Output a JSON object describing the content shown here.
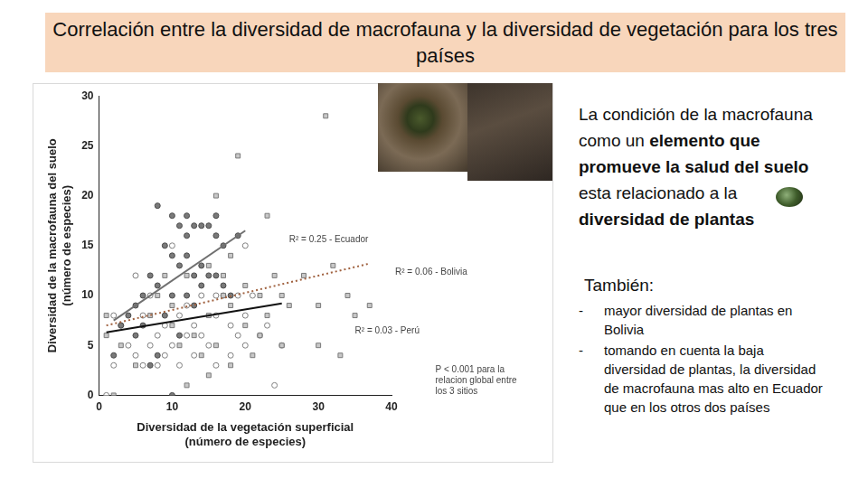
{
  "chart_data": {
    "type": "scatter",
    "title": "Correlación entre la diversidad de macrofauna y la diversidad de vegetación para los tres países",
    "x_label": [
      "Diversidad de la vegetación superficial",
      "(número de especies)"
    ],
    "y_label": [
      "Diversidad de la macrofauna del suelo",
      "(número de especies)"
    ],
    "xlim": [
      0,
      40
    ],
    "xticks": [
      0,
      10,
      20,
      30,
      40
    ],
    "ylim": [
      0,
      30
    ],
    "yticks": [
      0,
      5,
      10,
      15,
      20,
      25,
      30
    ],
    "grid": false,
    "series": [
      {
        "type": "scatter",
        "marker": "square",
        "color": "#c8c8c8",
        "x": [
          2,
          1,
          1,
          3,
          5,
          7,
          8,
          9,
          10,
          10,
          11,
          12,
          13,
          14,
          15,
          15,
          16,
          17,
          17,
          18,
          18,
          18,
          19,
          20,
          16,
          20,
          21,
          22,
          22,
          23,
          24,
          25,
          25,
          26,
          28,
          30,
          31,
          30,
          32,
          33,
          34,
          35,
          37,
          15,
          12,
          23
        ],
        "values": [
          0,
          8,
          6,
          5,
          3,
          8,
          10,
          12,
          9,
          7,
          5,
          12,
          6,
          4,
          13,
          8,
          5,
          10,
          12,
          9,
          14,
          3,
          24,
          11,
          20,
          7,
          4,
          10,
          6,
          8,
          12,
          5,
          10,
          9,
          12,
          9,
          28,
          5,
          13,
          4,
          10,
          8,
          9,
          2,
          1,
          18
        ]
      },
      {
        "type": "scatter",
        "marker": "circle",
        "color": "#7a7a7a",
        "x": [
          8,
          10,
          11,
          12,
          12,
          13,
          14,
          15,
          16,
          16,
          9,
          10,
          11,
          12,
          13,
          14,
          7,
          8,
          6,
          5,
          4,
          3,
          6,
          9,
          10,
          11,
          13,
          14,
          15,
          16,
          17,
          18,
          19,
          8,
          7,
          10,
          2,
          17,
          5,
          12
        ],
        "values": [
          19,
          18,
          17,
          16,
          18,
          17,
          17,
          17,
          18,
          16,
          15,
          14,
          13,
          14,
          12,
          11,
          12,
          11,
          10,
          9,
          8,
          7,
          7,
          8,
          10,
          6,
          9,
          13,
          12,
          12,
          11,
          10,
          16,
          4,
          3,
          0,
          4,
          15,
          6,
          10
        ]
      },
      {
        "type": "scatter",
        "marker": "open_circle",
        "color": "#808080",
        "x": [
          2,
          1,
          2,
          3,
          4,
          5,
          5,
          6,
          6,
          7,
          7,
          8,
          8,
          9,
          9,
          10,
          10,
          11,
          11,
          12,
          12,
          13,
          13,
          14,
          14,
          15,
          16,
          16,
          17,
          18,
          18,
          19,
          19,
          20,
          20,
          21,
          22,
          23,
          24,
          25,
          20,
          16
        ],
        "values": [
          3,
          0,
          8,
          7,
          5,
          12,
          4,
          3,
          8,
          5,
          10,
          6,
          3,
          4,
          7,
          15,
          5,
          8,
          3,
          6,
          9,
          4,
          7,
          10,
          6,
          5,
          8,
          3,
          10,
          7,
          4,
          10,
          6,
          5,
          8,
          10,
          6,
          7,
          1,
          5,
          15,
          10
        ]
      },
      {
        "type": "line",
        "name": "R² = 0.25 - Ecuador",
        "color": "#707070",
        "line_style": "solid",
        "x": [
          2,
          20
        ],
        "values": [
          7.5,
          16.5
        ],
        "label_x": 26,
        "label_y": 15.6
      },
      {
        "type": "line",
        "name": "R² = 0.06 - Bolivia",
        "color": "#a0613f",
        "line_style": "dotted",
        "x": [
          1,
          37
        ],
        "values": [
          7,
          13.2
        ],
        "label_x": 40.5,
        "label_y": 12.3
      },
      {
        "type": "line",
        "name": "R² = 0.03 - Perú",
        "color": "#111111",
        "line_style": "solid",
        "x": [
          1,
          25
        ],
        "values": [
          6.3,
          9.2
        ],
        "label_x": 35,
        "label_y": 6.4
      }
    ],
    "annotations": [
      {
        "text": [
          "P < 0.001 para la",
          "relacion global entre",
          "los 3 sitios"
        ],
        "x": 46,
        "y": 3
      }
    ]
  },
  "side_text": {
    "paragraph": [
      {
        "text": "La condición de la macrofauna como un ",
        "bold": false
      },
      {
        "text": "elemento que promueve la salud del suelo",
        "bold": true
      },
      {
        "text": " esta relacionado a la ",
        "bold": false
      },
      {
        "text": "diversidad de plantas",
        "bold": true
      }
    ],
    "subheading": "También:",
    "bullet_marker": "-",
    "bullets": [
      "mayor diversidad de plantas en Bolivia",
      "tomando en cuenta la baja diversidad de plantas, la diversidad de macrofauna mas alto en Ecuador que en los otros dos países"
    ]
  }
}
